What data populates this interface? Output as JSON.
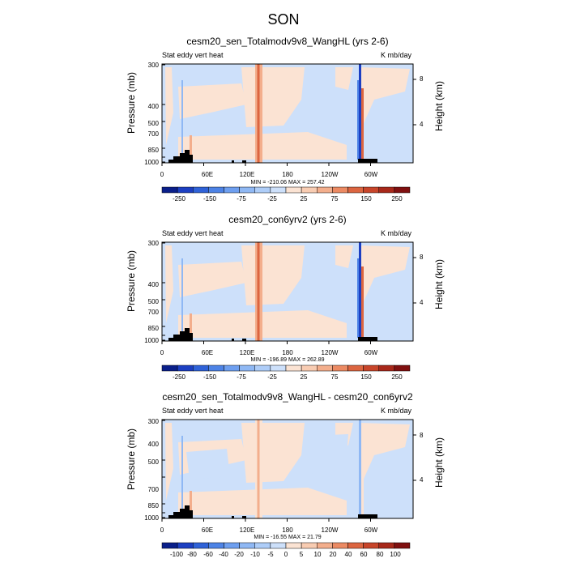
{
  "title": "SON",
  "chart_data": [
    {
      "type": "heatmap",
      "title": "cesm20_sen_Totalmodv9v8_WangHL (yrs 2-6)",
      "left_label": "Stat eddy vert heat",
      "right_label": "K mb/day",
      "ylabel": "Pressure (mb)",
      "ylabel_right": "Height (km)",
      "xticks": [
        "0",
        "60E",
        "120E",
        "180",
        "120W",
        "60W"
      ],
      "yticks": [
        "300",
        "400",
        "500",
        "700",
        "850",
        "1000"
      ],
      "height_ticks": [
        "8",
        "4"
      ],
      "min_max": "MIN = -210.06   MAX = 257.42",
      "colorbar_labels": [
        "-250",
        "-150",
        "-75",
        "-25",
        "25",
        "75",
        "150",
        "250"
      ],
      "colorbar_colors": [
        "#0a1f8a",
        "#1c3fc2",
        "#2f62d8",
        "#4d83e6",
        "#6e9ff0",
        "#8fb8f4",
        "#aecdf8",
        "#cde0fa",
        "#fbe3d3",
        "#f8ccb2",
        "#f3ae8c",
        "#ec8a63",
        "#dc6540",
        "#c8452a",
        "#a8281a",
        "#801010"
      ],
      "min": -210.06,
      "max": 257.42
    },
    {
      "type": "heatmap",
      "title": "cesm20_con6yrv2 (yrs 2-6)",
      "left_label": "Stat eddy vert heat",
      "right_label": "K mb/day",
      "ylabel": "Pressure (mb)",
      "ylabel_right": "Height (km)",
      "xticks": [
        "0",
        "60E",
        "120E",
        "180",
        "120W",
        "60W"
      ],
      "yticks": [
        "300",
        "400",
        "500",
        "700",
        "850",
        "1000"
      ],
      "height_ticks": [
        "8",
        "4"
      ],
      "min_max": "MIN = -196.89   MAX = 262.89",
      "colorbar_labels": [
        "-250",
        "-150",
        "-75",
        "-25",
        "25",
        "75",
        "150",
        "250"
      ],
      "colorbar_colors": [
        "#0a1f8a",
        "#1c3fc2",
        "#2f62d8",
        "#4d83e6",
        "#6e9ff0",
        "#8fb8f4",
        "#aecdf8",
        "#cde0fa",
        "#fbe3d3",
        "#f8ccb2",
        "#f3ae8c",
        "#ec8a63",
        "#dc6540",
        "#c8452a",
        "#a8281a",
        "#801010"
      ],
      "min": -196.89,
      "max": 262.89
    },
    {
      "type": "heatmap",
      "title": "cesm20_sen_Totalmodv9v8_WangHL - cesm20_con6yrv2",
      "left_label": "Stat eddy vert heat",
      "right_label": "K mb/day",
      "ylabel": "Pressure (mb)",
      "ylabel_right": "Height (km)",
      "xticks": [
        "0",
        "60E",
        "120E",
        "180",
        "120W",
        "60W"
      ],
      "yticks": [
        "300",
        "400",
        "500",
        "700",
        "850",
        "1000"
      ],
      "height_ticks": [
        "8",
        "4"
      ],
      "min_max": "MIN = -16.55   MAX = 21.79",
      "colorbar_labels": [
        "-100",
        "-80",
        "-60",
        "-40",
        "-20",
        "-10",
        "-5",
        "0",
        "5",
        "10",
        "20",
        "40",
        "60",
        "80",
        "100"
      ],
      "colorbar_colors": [
        "#0a1f8a",
        "#1c3fc2",
        "#2f62d8",
        "#4d83e6",
        "#6e9ff0",
        "#8fb8f4",
        "#aecdf8",
        "#cde0fa",
        "#fbe3d3",
        "#f8ccb2",
        "#f3ae8c",
        "#ec8a63",
        "#dc6540",
        "#c8452a",
        "#a8281a",
        "#801010"
      ],
      "min": -16.55,
      "max": 21.79
    }
  ]
}
